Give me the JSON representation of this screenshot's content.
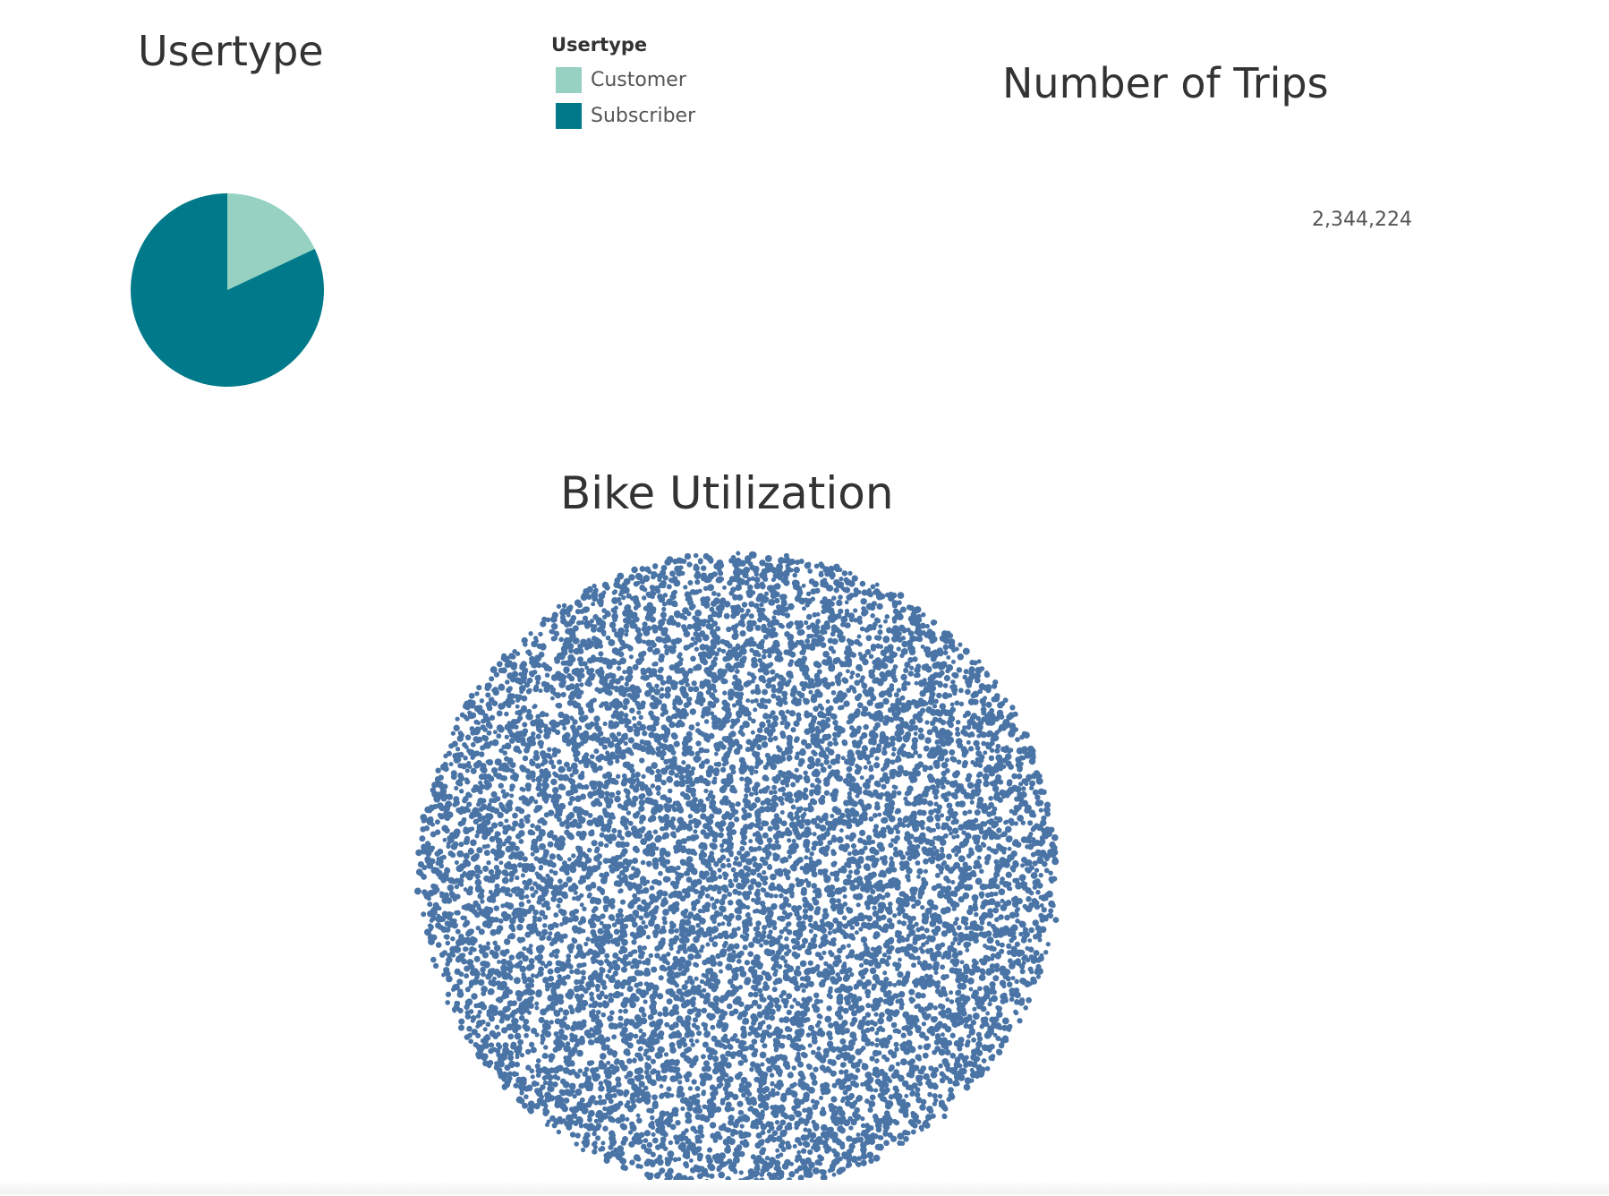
{
  "usertype_sheet": {
    "title": "Usertype",
    "legend": {
      "title": "Usertype",
      "items": [
        {
          "label": "Customer",
          "color": "#96d1c2"
        },
        {
          "label": "Subscriber",
          "color": "#007a8a"
        }
      ]
    }
  },
  "trips_sheet": {
    "title": "Number of Trips",
    "value": "2,344,224"
  },
  "bike_sheet": {
    "title": "Bike Utilization",
    "mark_color": "#4a74a5"
  },
  "chart_data": [
    {
      "type": "pie",
      "title": "Usertype",
      "categories": [
        "Customer",
        "Subscriber"
      ],
      "values": [
        18,
        82
      ],
      "unit": "percent (estimated)",
      "colors": [
        "#96d1c2",
        "#007a8a"
      ],
      "legend": "right"
    },
    {
      "type": "table",
      "title": "Number of Trips",
      "values": [
        2344224
      ]
    },
    {
      "type": "scatter",
      "title": "Bike Utilization",
      "shape": "packed circle of point marks",
      "mark_color": "#4a74a5"
    }
  ]
}
